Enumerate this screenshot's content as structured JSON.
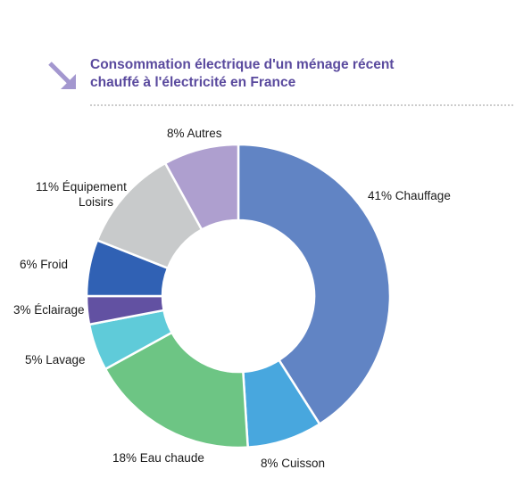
{
  "header": {
    "title_line1": "Consommation électrique d'un ménage récent",
    "title_line2": "chauffé à l'électricité en France",
    "title_color": "#5a4a9e",
    "arrow_icon": "arrow-down-right-icon",
    "arrow_color": "#a397cf"
  },
  "chart_data": {
    "type": "pie",
    "style": "donut",
    "title": "Consommation électrique d'un ménage récent chauffé à l'électricité en France",
    "unit": "%",
    "slices": [
      {
        "label": "41% Chauffage",
        "value": 41,
        "color": "#6184c4"
      },
      {
        "label": "8% Cuisson",
        "value": 8,
        "color": "#48a7de"
      },
      {
        "label": "18% Eau chaude",
        "value": 18,
        "color": "#6dc584"
      },
      {
        "label": "5% Lavage",
        "value": 5,
        "color": "#5fcbd9"
      },
      {
        "label": "3% Éclairage",
        "value": 3,
        "color": "#6251a2"
      },
      {
        "label": "6% Froid",
        "value": 6,
        "color": "#3061b4"
      },
      {
        "label": "11% Équipement Loisirs",
        "label_lines": [
          "11% Équipement",
          "Loisirs"
        ],
        "value": 11,
        "color": "#c8cacb"
      },
      {
        "label": "8% Autres",
        "value": 8,
        "color": "#ae9fcf"
      }
    ]
  }
}
